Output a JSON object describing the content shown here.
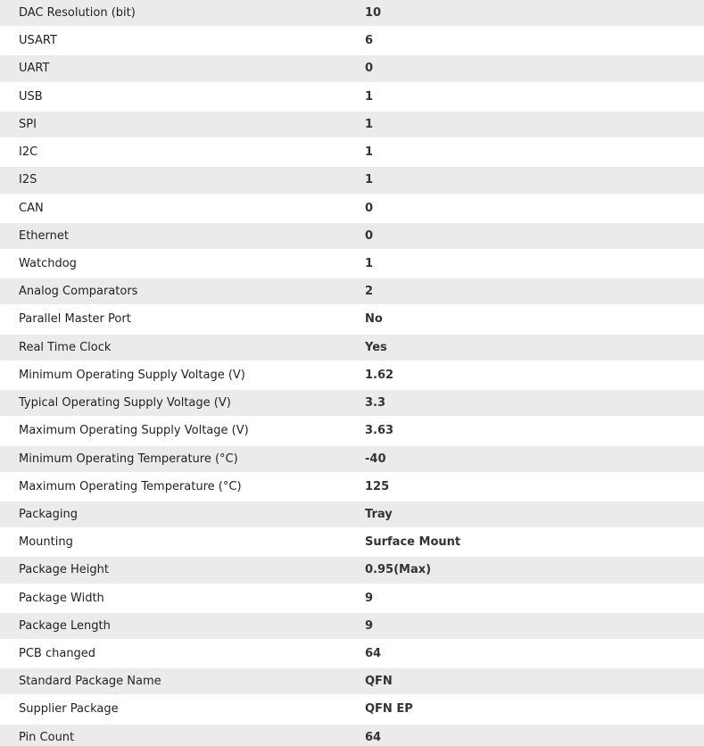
{
  "table": {
    "rows": [
      [
        "DAC Resolution (bit)",
        "10"
      ],
      [
        "USART",
        "6"
      ],
      [
        "UART",
        "0"
      ],
      [
        "USB",
        "1"
      ],
      [
        "SPI",
        "1"
      ],
      [
        "I2C",
        "1"
      ],
      [
        "I2S",
        "1"
      ],
      [
        "CAN",
        "0"
      ],
      [
        "Ethernet",
        "0"
      ],
      [
        "Watchdog",
        "1"
      ],
      [
        "Analog Comparators",
        "2"
      ],
      [
        "Parallel Master Port",
        "No"
      ],
      [
        "Real Time Clock",
        "Yes"
      ],
      [
        "Minimum Operating Supply Voltage (V)",
        "1.62"
      ],
      [
        "Typical Operating Supply Voltage (V)",
        "3.3"
      ],
      [
        "Maximum Operating Supply Voltage (V)",
        "3.63"
      ],
      [
        "Minimum Operating Temperature (°C)",
        "-40"
      ],
      [
        "Maximum Operating Temperature (°C)",
        "125"
      ],
      [
        "Packaging",
        "Tray"
      ],
      [
        "Mounting",
        "Surface Mount"
      ],
      [
        "Package Height",
        "0.95(Max)"
      ],
      [
        "Package Width",
        "9"
      ],
      [
        "Package Length",
        "9"
      ],
      [
        "PCB changed",
        "64"
      ],
      [
        "Standard Package Name",
        "QFN"
      ],
      [
        "Supplier Package",
        "QFN EP"
      ],
      [
        "Pin Count",
        "64"
      ]
    ]
  }
}
